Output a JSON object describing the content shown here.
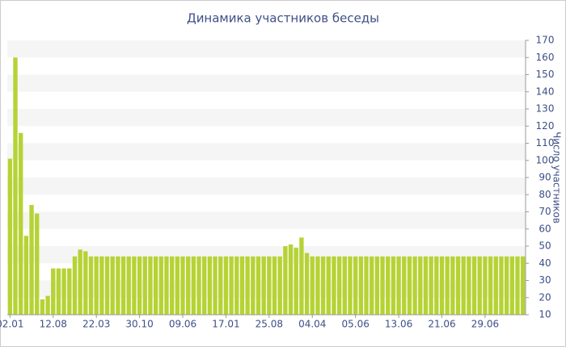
{
  "chart_data": {
    "type": "bar",
    "title": "Динамика участников беседы",
    "y_label": "Число участников",
    "categories": [
      "02.01",
      null,
      null,
      null,
      null,
      null,
      null,
      null,
      "12.08",
      null,
      null,
      null,
      null,
      null,
      null,
      null,
      "22.03",
      null,
      null,
      null,
      null,
      null,
      null,
      null,
      "30.10",
      null,
      null,
      null,
      null,
      null,
      null,
      null,
      "09.06",
      null,
      null,
      null,
      null,
      null,
      null,
      null,
      "17.01",
      null,
      null,
      null,
      null,
      null,
      null,
      null,
      "25.08",
      null,
      null,
      null,
      null,
      null,
      null,
      null,
      "04.04",
      null,
      null,
      null,
      null,
      null,
      null,
      null,
      "05.06",
      null,
      null,
      null,
      null,
      null,
      null,
      null,
      "13.06",
      null,
      null,
      null,
      null,
      null,
      null,
      null,
      "21.06",
      null,
      null,
      null,
      null,
      null,
      null,
      null,
      "29.06",
      null,
      null,
      null,
      null,
      null,
      null,
      null
    ],
    "values": [
      101,
      160,
      116,
      56,
      74,
      69,
      19,
      21,
      37,
      37,
      37,
      37,
      44,
      48,
      47,
      44,
      44,
      44,
      44,
      44,
      44,
      44,
      44,
      44,
      44,
      44,
      44,
      44,
      44,
      44,
      44,
      44,
      44,
      44,
      44,
      44,
      44,
      44,
      44,
      44,
      44,
      44,
      44,
      44,
      44,
      44,
      44,
      44,
      44,
      44,
      44,
      50,
      51,
      49,
      55,
      46,
      44,
      44,
      44,
      44,
      44,
      44,
      44,
      44,
      44,
      44,
      44,
      44,
      44,
      44,
      44,
      44,
      44,
      44,
      44,
      44,
      44,
      44,
      44,
      44,
      44,
      44,
      44,
      44,
      44,
      44,
      44,
      44,
      44,
      44,
      44,
      44,
      44,
      44,
      44,
      44
    ],
    "color": "#b5d334",
    "ylim": [
      10,
      170
    ],
    "yticks": [
      10,
      20,
      30,
      40,
      50,
      60,
      70,
      80,
      90,
      100,
      110,
      120,
      130,
      140,
      150,
      160,
      170
    ],
    "grid": "banded"
  }
}
